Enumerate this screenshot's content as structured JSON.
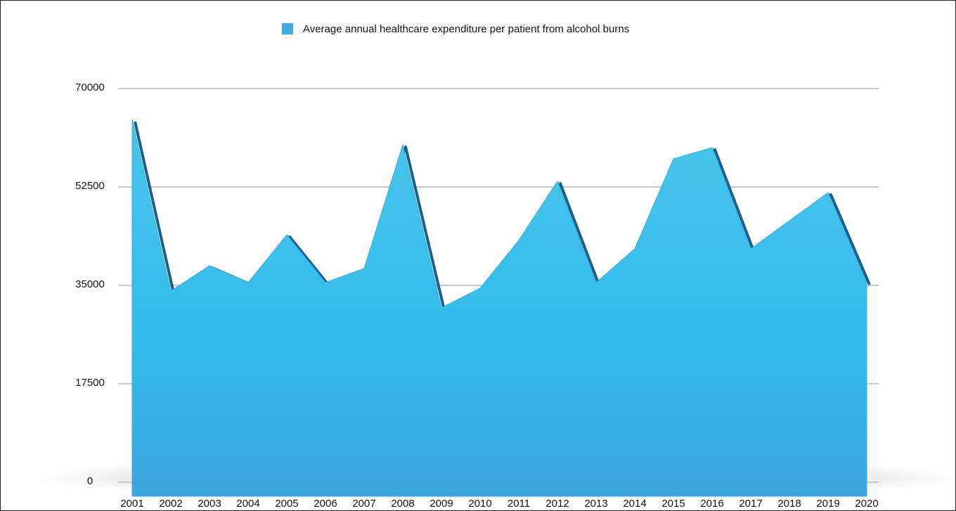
{
  "chart_data": {
    "type": "area",
    "categories": [
      "2001",
      "2002",
      "2003",
      "2004",
      "2005",
      "2006",
      "2007",
      "2008",
      "2009",
      "2010",
      "2011",
      "2012",
      "2013",
      "2014",
      "2015",
      "2016",
      "2017",
      "2018",
      "2019",
      "2020"
    ],
    "series": [
      {
        "name": "Average annual healthcare expenditure per patient from alcohol burns",
        "color": "#3aace0",
        "values": [
          64500,
          34000,
          38500,
          35500,
          44000,
          35500,
          38000,
          60000,
          31000,
          34500,
          43000,
          53500,
          35500,
          41500,
          57500,
          59500,
          41500,
          46500,
          51500,
          35500
        ]
      }
    ],
    "ylim": [
      0,
      70000
    ],
    "yticks": [
      0,
      17500,
      35000,
      52500,
      70000
    ],
    "grid": true,
    "legend": "top"
  }
}
